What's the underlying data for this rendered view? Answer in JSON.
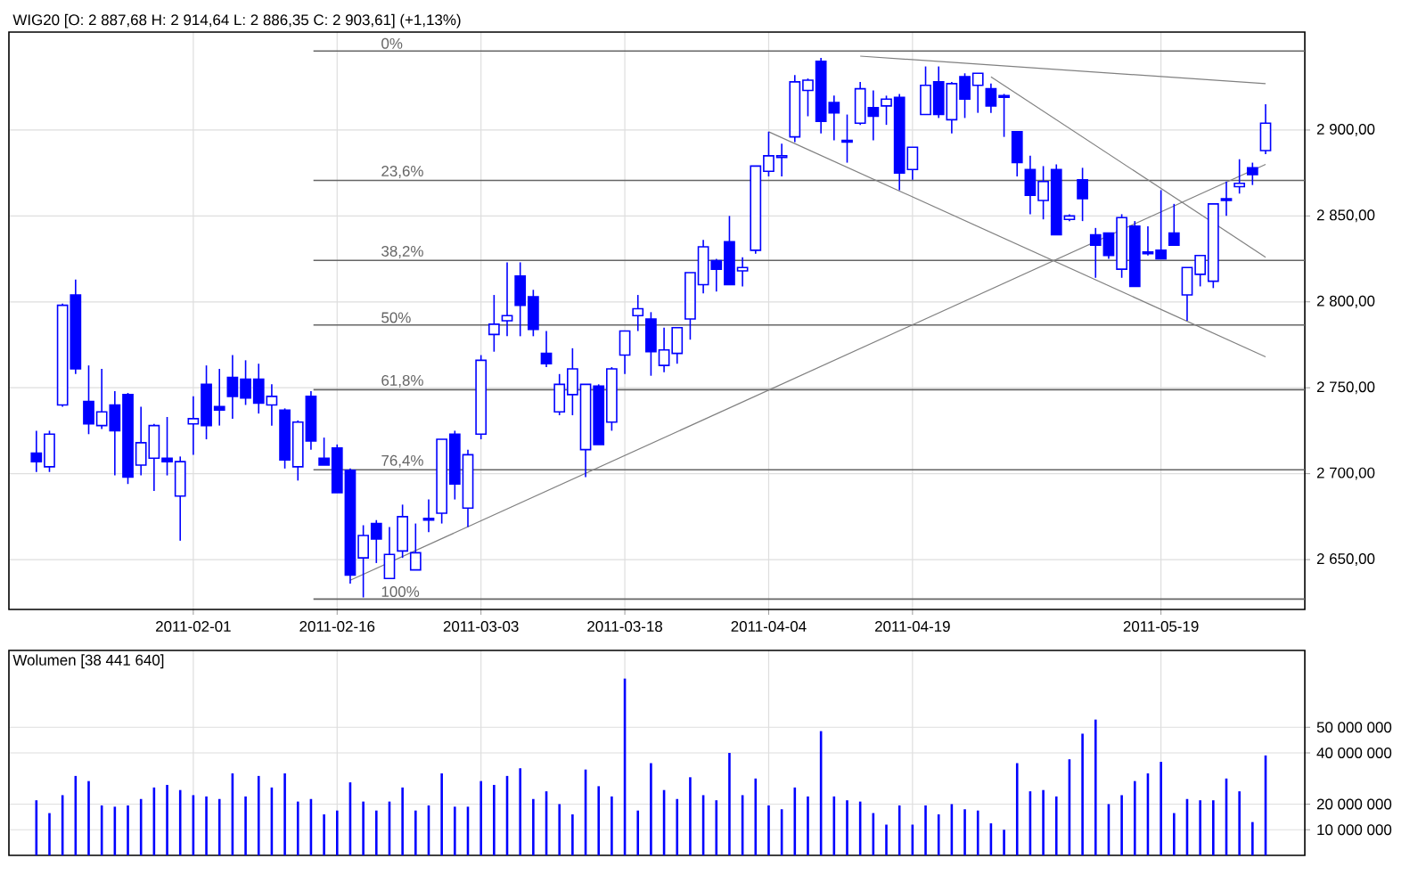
{
  "chart_data": [
    {
      "type": "candlestick",
      "title": "WIG20 [O: 2 887,68  H: 2 914,64  L: 2 886,35  C: 2 903,61] (+1,13%)",
      "color": "#0000ff",
      "grid": true,
      "categories": [
        null,
        null,
        null,
        null,
        null,
        null,
        null,
        null,
        null,
        null,
        null,
        null,
        "2011-02-01",
        null,
        null,
        null,
        null,
        null,
        null,
        null,
        null,
        null,
        null,
        "2011-02-16",
        null,
        null,
        null,
        null,
        null,
        null,
        null,
        null,
        null,
        null,
        "2011-03-03",
        null,
        null,
        null,
        null,
        null,
        null,
        null,
        null,
        null,
        null,
        "2011-03-18",
        null,
        null,
        null,
        null,
        null,
        null,
        null,
        null,
        null,
        null,
        "2011-04-04",
        null,
        null,
        null,
        null,
        null,
        null,
        null,
        null,
        null,
        null,
        "2011-04-19",
        null,
        null,
        null,
        null,
        null,
        null,
        null,
        null,
        null,
        null,
        null,
        null,
        null,
        null,
        null,
        null,
        null,
        null,
        "2011-05-19",
        null,
        null,
        null,
        null,
        null,
        null,
        null,
        null
      ],
      "ohlc": [
        [
          2712,
          2725,
          2701,
          2707
        ],
        [
          2704,
          2725,
          2701,
          2723
        ],
        [
          2740,
          2799,
          2739,
          2798
        ],
        [
          2804,
          2813,
          2758,
          2761
        ],
        [
          2742,
          2763,
          2723,
          2729
        ],
        [
          2728,
          2761,
          2726,
          2736
        ],
        [
          2740,
          2748,
          2699,
          2725
        ],
        [
          2746,
          2747,
          2694,
          2698
        ],
        [
          2705,
          2739,
          2699,
          2718
        ],
        [
          2709,
          2729,
          2690,
          2728
        ],
        [
          2709,
          2733,
          2699,
          2707
        ],
        [
          2687,
          2710,
          2661,
          2707
        ],
        [
          2729,
          2745,
          2711,
          2732
        ],
        [
          2752,
          2763,
          2720,
          2728
        ],
        [
          2739,
          2761,
          2728,
          2737
        ],
        [
          2756,
          2769,
          2732,
          2745
        ],
        [
          2755,
          2766,
          2740,
          2744
        ],
        [
          2755,
          2764,
          2735,
          2741
        ],
        [
          2740,
          2752,
          2728,
          2745
        ],
        [
          2737,
          2738,
          2703,
          2708
        ],
        [
          2704,
          2731,
          2696,
          2730
        ],
        [
          2745,
          2748,
          2714,
          2719
        ],
        [
          2709,
          2721,
          2705,
          2705
        ],
        [
          2715,
          2717,
          2689,
          2689
        ],
        [
          2702,
          2703,
          2636,
          2641
        ],
        [
          2651,
          2670,
          2628,
          2664
        ],
        [
          2671,
          2673,
          2648,
          2662
        ],
        [
          2639,
          2669,
          2639,
          2653
        ],
        [
          2655,
          2682,
          2651,
          2675
        ],
        [
          2644,
          2671,
          2644,
          2654
        ],
        [
          2674,
          2685,
          2666,
          2673
        ],
        [
          2677,
          2720,
          2671,
          2720
        ],
        [
          2723,
          2725,
          2685,
          2694
        ],
        [
          2680,
          2714,
          2669,
          2711
        ],
        [
          2723,
          2769,
          2720,
          2766
        ],
        [
          2781,
          2804,
          2771,
          2787
        ],
        [
          2789,
          2823,
          2780,
          2792
        ],
        [
          2815,
          2823,
          2780,
          2798
        ],
        [
          2803,
          2807,
          2780,
          2784
        ],
        [
          2770,
          2783,
          2762,
          2764
        ],
        [
          2736,
          2758,
          2734,
          2752
        ],
        [
          2746,
          2773,
          2734,
          2761
        ],
        [
          2714,
          2752,
          2698,
          2752
        ],
        [
          2751,
          2752,
          2717,
          2717
        ],
        [
          2730,
          2762,
          2725,
          2761
        ],
        [
          2769,
          2783,
          2758,
          2783
        ],
        [
          2792,
          2804,
          2783,
          2796
        ],
        [
          2790,
          2794,
          2757,
          2771
        ],
        [
          2763,
          2785,
          2759,
          2772
        ],
        [
          2770,
          2785,
          2764,
          2785
        ],
        [
          2790,
          2817,
          2778,
          2817
        ],
        [
          2810,
          2836,
          2805,
          2832
        ],
        [
          2824,
          2825,
          2806,
          2819
        ],
        [
          2835,
          2850,
          2810,
          2810
        ],
        [
          2818,
          2826,
          2809,
          2820
        ],
        [
          2830,
          2879,
          2828,
          2879
        ],
        [
          2876,
          2899,
          2873,
          2885
        ],
        [
          2884,
          2892,
          2873,
          2885
        ],
        [
          2896,
          2932,
          2893,
          2928
        ],
        [
          2923,
          2930,
          2908,
          2929
        ],
        [
          2940,
          2942,
          2898,
          2905
        ],
        [
          2916,
          2920,
          2894,
          2910
        ],
        [
          2894,
          2909,
          2881,
          2893
        ],
        [
          2904,
          2928,
          2903,
          2924
        ],
        [
          2913,
          2923,
          2894,
          2908
        ],
        [
          2914,
          2920,
          2903,
          2918
        ],
        [
          2919,
          2921,
          2865,
          2875
        ],
        [
          2877,
          2890,
          2871,
          2890
        ],
        [
          2909,
          2937,
          2909,
          2926
        ],
        [
          2928,
          2937,
          2907,
          2909
        ],
        [
          2906,
          2928,
          2898,
          2927
        ],
        [
          2931,
          2933,
          2907,
          2918
        ],
        [
          2926,
          2933,
          2910,
          2933
        ],
        [
          2924,
          2927,
          2910,
          2914
        ],
        [
          2920,
          2921,
          2896,
          2919
        ],
        [
          2899,
          2899,
          2873,
          2881
        ],
        [
          2877,
          2885,
          2851,
          2862
        ],
        [
          2859,
          2879,
          2848,
          2870
        ],
        [
          2877,
          2880,
          2839,
          2839
        ],
        [
          2848,
          2851,
          2847,
          2850
        ],
        [
          2871,
          2878,
          2847,
          2860
        ],
        [
          2839,
          2843,
          2814,
          2833
        ],
        [
          2840,
          2840,
          2825,
          2827
        ],
        [
          2819,
          2851,
          2814,
          2849
        ],
        [
          2844,
          2847,
          2809,
          2809
        ],
        [
          2829,
          2844,
          2827,
          2828
        ],
        [
          2830,
          2865,
          2825,
          2825
        ],
        [
          2840,
          2857,
          2833,
          2833
        ],
        [
          2804,
          2820,
          2789,
          2820
        ],
        [
          2816,
          2827,
          2809,
          2827
        ],
        [
          2812,
          2857,
          2808,
          2857
        ],
        [
          2860,
          2870,
          2850,
          2859
        ],
        [
          2867,
          2883,
          2863,
          2869
        ],
        [
          2878,
          2881,
          2868,
          2874
        ],
        [
          2888,
          2915,
          2886,
          2904
        ]
      ],
      "series": [
        {
          "type": "line",
          "color": "#808080",
          "values": [
            null,
            null,
            null,
            null,
            null,
            null,
            null,
            null,
            null,
            null,
            null,
            null,
            null,
            null,
            null,
            null,
            null,
            null,
            null,
            null,
            null,
            null,
            null,
            null,
            2638,
            null,
            null,
            null,
            null,
            null,
            null,
            null,
            null,
            null,
            null,
            null,
            null,
            null,
            null,
            null,
            null,
            null,
            null,
            null,
            null,
            null,
            null,
            null,
            null,
            null,
            null,
            null,
            null,
            null,
            null,
            null,
            null,
            null,
            null,
            null,
            null,
            null,
            null,
            null,
            null,
            null,
            null,
            null,
            null,
            null,
            null,
            null,
            null,
            null,
            null,
            null,
            null,
            null,
            null,
            null,
            null,
            null,
            null,
            null,
            null,
            null,
            null,
            null,
            null,
            null,
            null,
            null,
            null,
            null,
            2880
          ]
        },
        {
          "type": "line",
          "color": "#808080",
          "values": [
            null,
            null,
            null,
            null,
            null,
            null,
            null,
            null,
            null,
            null,
            null,
            null,
            null,
            null,
            null,
            null,
            null,
            null,
            null,
            null,
            null,
            null,
            null,
            null,
            null,
            null,
            null,
            null,
            null,
            null,
            null,
            null,
            null,
            null,
            null,
            null,
            null,
            null,
            null,
            null,
            null,
            null,
            null,
            null,
            null,
            null,
            null,
            null,
            null,
            null,
            null,
            null,
            null,
            null,
            null,
            null,
            2899,
            null,
            null,
            null,
            null,
            null,
            null,
            null,
            null,
            null,
            null,
            null,
            null,
            null,
            null,
            null,
            null,
            null,
            null,
            null,
            null,
            null,
            null,
            null,
            null,
            null,
            null,
            null,
            null,
            null,
            null,
            null,
            null,
            null,
            null,
            null,
            null,
            null,
            2768
          ]
        },
        {
          "type": "line",
          "color": "#808080",
          "values": [
            null,
            null,
            null,
            null,
            null,
            null,
            null,
            null,
            null,
            null,
            null,
            null,
            null,
            null,
            null,
            null,
            null,
            null,
            null,
            null,
            null,
            null,
            null,
            null,
            null,
            null,
            null,
            null,
            null,
            null,
            null,
            null,
            null,
            null,
            null,
            null,
            null,
            null,
            null,
            null,
            null,
            null,
            null,
            null,
            null,
            null,
            null,
            null,
            null,
            null,
            null,
            null,
            null,
            null,
            null,
            null,
            null,
            null,
            null,
            null,
            null,
            null,
            null,
            null,
            null,
            null,
            null,
            null,
            null,
            null,
            null,
            null,
            null,
            2931,
            null,
            null,
            null,
            null,
            null,
            null,
            null,
            null,
            null,
            null,
            null,
            null,
            null,
            null,
            null,
            null,
            null,
            null,
            null,
            null,
            2826
          ]
        },
        {
          "type": "line",
          "color": "#808080",
          "values": [
            null,
            null,
            null,
            null,
            null,
            null,
            null,
            null,
            null,
            null,
            null,
            null,
            null,
            null,
            null,
            null,
            null,
            null,
            null,
            null,
            null,
            null,
            null,
            null,
            null,
            null,
            null,
            null,
            null,
            null,
            null,
            null,
            null,
            null,
            null,
            null,
            null,
            null,
            null,
            null,
            null,
            null,
            null,
            null,
            null,
            null,
            null,
            null,
            null,
            null,
            null,
            null,
            null,
            null,
            null,
            null,
            null,
            null,
            null,
            null,
            null,
            null,
            null,
            2943,
            null,
            null,
            null,
            null,
            null,
            null,
            null,
            null,
            null,
            null,
            null,
            null,
            null,
            null,
            null,
            null,
            null,
            null,
            null,
            null,
            null,
            null,
            null,
            null,
            null,
            null,
            null,
            null,
            null,
            null,
            2927
          ]
        }
      ],
      "ylim": [
        2621,
        2957
      ],
      "yticks": [
        {
          "value": 2650,
          "label": "2 650,00"
        },
        {
          "value": 2700,
          "label": "2 700,00"
        },
        {
          "value": 2750,
          "label": "2 750,00"
        },
        {
          "value": 2800,
          "label": "2 800,00"
        },
        {
          "value": 2850,
          "label": "2 850,00"
        },
        {
          "value": 2900,
          "label": "2 900,00"
        }
      ],
      "ref_lines": [
        {
          "axis": "y",
          "value": 2946,
          "color": "#666666"
        },
        {
          "axis": "y",
          "value": 2870.7,
          "color": "#666666"
        },
        {
          "axis": "y",
          "value": 2824.1,
          "color": "#666666"
        },
        {
          "axis": "y",
          "value": 2786.5,
          "color": "#666666"
        },
        {
          "axis": "y",
          "value": 2748.9,
          "color": "#666666"
        },
        {
          "axis": "y",
          "value": 2702.3,
          "color": "#666666"
        },
        {
          "axis": "y",
          "value": 2627,
          "color": "#666666"
        }
      ],
      "annotations": [
        {
          "text": "0%",
          "y": 2946
        },
        {
          "text": "23,6%",
          "y": 2870.7
        },
        {
          "text": "38,2%",
          "y": 2824.1
        },
        {
          "text": "50%",
          "y": 2786.5
        },
        {
          "text": "61,8%",
          "y": 2748.9
        },
        {
          "text": "76,4%",
          "y": 2702.3
        },
        {
          "text": "100%",
          "y": 2627
        }
      ]
    },
    {
      "type": "bar",
      "title": "Wolumen [38 441 640]",
      "color": "#0000ff",
      "grid": true,
      "tick_labels": "y",
      "categories": [
        null,
        null,
        null,
        null,
        null,
        null,
        null,
        null,
        null,
        null,
        null,
        null,
        "2011-02-01",
        null,
        null,
        null,
        null,
        null,
        null,
        null,
        null,
        null,
        null,
        "2011-02-16",
        null,
        null,
        null,
        null,
        null,
        null,
        null,
        null,
        null,
        null,
        "2011-03-03",
        null,
        null,
        null,
        null,
        null,
        null,
        null,
        null,
        null,
        null,
        "2011-03-18",
        null,
        null,
        null,
        null,
        null,
        null,
        null,
        null,
        null,
        null,
        "2011-04-04",
        null,
        null,
        null,
        null,
        null,
        null,
        null,
        null,
        null,
        null,
        "2011-04-19",
        null,
        null,
        null,
        null,
        null,
        null,
        null,
        null,
        null,
        null,
        null,
        null,
        null,
        null,
        null,
        null,
        null,
        null,
        "2011-05-19",
        null,
        null,
        null,
        null,
        null,
        null,
        null,
        null
      ],
      "values": [
        21500000,
        16500000,
        23500000,
        31000000,
        29000000,
        19500000,
        19000000,
        19500000,
        22000000,
        26500000,
        27500000,
        25500000,
        23500000,
        23000000,
        22000000,
        32000000,
        23000000,
        31000000,
        26500000,
        32000000,
        21000000,
        22000000,
        16000000,
        17500000,
        28500000,
        21000000,
        17500000,
        21000000,
        26500000,
        17500000,
        19500000,
        32000000,
        19000000,
        19000000,
        29000000,
        27500000,
        31000000,
        34000000,
        22000000,
        25000000,
        20000000,
        16000000,
        33500000,
        27000000,
        23000000,
        69000000,
        17500000,
        36000000,
        25500000,
        22000000,
        30500000,
        23500000,
        21500000,
        40000000,
        23500000,
        30000000,
        19500000,
        18000000,
        26500000,
        23000000,
        48500000,
        23000000,
        21500000,
        21000000,
        16500000,
        12000000,
        19500000,
        12000000,
        19500000,
        16000000,
        20000000,
        18000000,
        17500000,
        12500000,
        10000000,
        36000000,
        25000000,
        25500000,
        23000000,
        37500000,
        47500000,
        53000000,
        20000000,
        23500000,
        29000000,
        32000000,
        36500000,
        16500000,
        22000000,
        21500000,
        21500000,
        30000000,
        25000000,
        13000000,
        39000000
      ],
      "ylim": [
        0,
        80000000
      ],
      "yticks": [
        {
          "value": 10000000,
          "label": "10 000 000"
        },
        {
          "value": 20000000,
          "label": "20 000 000"
        },
        {
          "value": 40000000,
          "label": "40 000 000"
        },
        {
          "value": 50000000,
          "label": "50 000 000"
        }
      ]
    }
  ]
}
